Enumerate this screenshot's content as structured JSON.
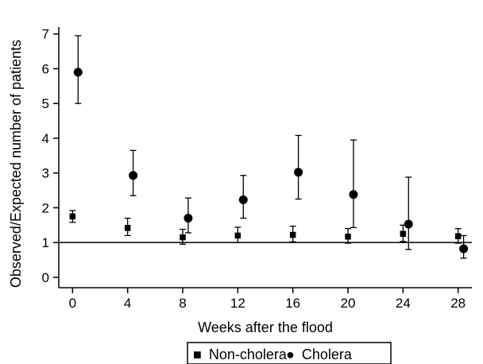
{
  "chart_data": {
    "type": "scatter",
    "xlabel": "Weeks after the flood",
    "ylabel": "Observed/Expected number of patients",
    "xlim": [
      -1,
      29
    ],
    "ylim": [
      -0.3,
      7.2
    ],
    "xticks": [
      0,
      4,
      8,
      12,
      16,
      20,
      24,
      28
    ],
    "yticks": [
      0,
      1,
      2,
      3,
      4,
      5,
      6,
      7
    ],
    "reference_line_y": 1,
    "grid": false,
    "legend_position": "bottom",
    "series": [
      {
        "name": "Non-cholera",
        "marker": "square",
        "color": "#000000",
        "points": [
          {
            "x": 0,
            "y": 1.75,
            "lower": 1.58,
            "upper": 1.92
          },
          {
            "x": 4,
            "y": 1.42,
            "lower": 1.2,
            "upper": 1.7
          },
          {
            "x": 8,
            "y": 1.15,
            "lower": 0.95,
            "upper": 1.38
          },
          {
            "x": 12,
            "y": 1.2,
            "lower": 1.0,
            "upper": 1.44
          },
          {
            "x": 16,
            "y": 1.22,
            "lower": 1.02,
            "upper": 1.47
          },
          {
            "x": 20,
            "y": 1.17,
            "lower": 0.98,
            "upper": 1.4
          },
          {
            "x": 24,
            "y": 1.25,
            "lower": 1.03,
            "upper": 1.5
          },
          {
            "x": 28,
            "y": 1.18,
            "lower": 0.98,
            "upper": 1.4
          }
        ]
      },
      {
        "name": "Cholera",
        "marker": "circle",
        "color": "#000000",
        "points": [
          {
            "x": 0.4,
            "y": 5.9,
            "lower": 5.0,
            "upper": 6.95
          },
          {
            "x": 4.4,
            "y": 2.93,
            "lower": 2.35,
            "upper": 3.65
          },
          {
            "x": 8.4,
            "y": 1.7,
            "lower": 1.28,
            "upper": 2.28
          },
          {
            "x": 12.4,
            "y": 2.23,
            "lower": 1.7,
            "upper": 2.93
          },
          {
            "x": 16.4,
            "y": 3.02,
            "lower": 2.25,
            "upper": 4.08
          },
          {
            "x": 20.4,
            "y": 2.38,
            "lower": 1.43,
            "upper": 3.95
          },
          {
            "x": 24.4,
            "y": 1.53,
            "lower": 0.8,
            "upper": 2.88
          },
          {
            "x": 28.4,
            "y": 0.82,
            "lower": 0.55,
            "upper": 1.2
          }
        ]
      }
    ]
  },
  "legend": {
    "items": [
      {
        "symbol": "■",
        "label": "Non-cholera"
      },
      {
        "symbol": "●",
        "label": "Cholera"
      }
    ]
  }
}
